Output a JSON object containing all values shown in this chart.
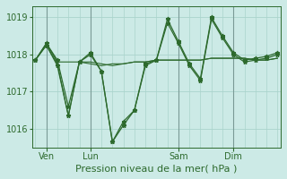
{
  "background_color": "#cceae6",
  "line_color": "#2d6a2d",
  "grid_color": "#aad4cc",
  "vline_color": "#7a9a96",
  "axis_color": "#2d6a2d",
  "ylabel": "Pression niveau de la mer( hPa )",
  "ylim": [
    1015.5,
    1019.3
  ],
  "yticks": [
    1016,
    1017,
    1018,
    1019
  ],
  "series1_x": [
    0,
    1,
    2,
    3,
    4,
    5,
    6,
    7,
    8,
    9,
    10,
    11,
    12,
    13,
    14,
    15,
    16,
    17,
    18,
    19,
    20,
    21,
    22
  ],
  "series1_y": [
    1017.85,
    1018.3,
    1017.8,
    1017.8,
    1017.8,
    1017.75,
    1017.7,
    1017.75,
    1017.75,
    1017.8,
    1017.8,
    1017.85,
    1017.85,
    1017.85,
    1017.85,
    1017.85,
    1017.9,
    1017.9,
    1017.9,
    1017.9,
    1017.85,
    1017.85,
    1017.9
  ],
  "series2_x": [
    0,
    1,
    2,
    3,
    4,
    5,
    6,
    7,
    8,
    9,
    10,
    11,
    12,
    13,
    14,
    15,
    16,
    17,
    18,
    19,
    20,
    21,
    22
  ],
  "series2_y": [
    1017.85,
    1018.25,
    1017.75,
    1016.35,
    1017.8,
    1017.8,
    1017.75,
    1017.7,
    1017.75,
    1017.8,
    1017.8,
    1017.85,
    1017.85,
    1017.85,
    1017.85,
    1017.85,
    1017.9,
    1017.9,
    1017.9,
    1017.9,
    1017.85,
    1017.85,
    1017.9
  ],
  "series3_x": [
    0,
    1,
    2,
    3,
    4,
    5,
    6,
    7,
    8,
    9,
    10,
    11,
    12,
    13,
    14,
    15,
    16,
    17,
    18,
    19,
    20,
    21,
    22
  ],
  "series3_y": [
    1017.85,
    1018.3,
    1017.85,
    1016.6,
    1017.8,
    1018.0,
    1017.55,
    1015.65,
    1016.2,
    1016.5,
    1017.75,
    1017.85,
    1018.95,
    1018.35,
    1017.75,
    1017.35,
    1019.0,
    1018.5,
    1018.05,
    1017.85,
    1017.9,
    1017.95,
    1018.05
  ],
  "series4_x": [
    0,
    1,
    2,
    3,
    4,
    5,
    6,
    7,
    8,
    9,
    10,
    11,
    12,
    13,
    14,
    15,
    16,
    17,
    18,
    19,
    20,
    21,
    22
  ],
  "series4_y": [
    1017.85,
    1018.25,
    1017.7,
    1016.35,
    1017.8,
    1018.05,
    1017.55,
    1015.65,
    1016.1,
    1016.5,
    1017.7,
    1017.85,
    1018.85,
    1018.3,
    1017.7,
    1017.3,
    1018.95,
    1018.45,
    1018.0,
    1017.8,
    1017.85,
    1017.9,
    1018.0
  ],
  "xtick_positions": [
    1,
    5,
    13,
    18
  ],
  "xtick_labels": [
    "Ven",
    "Lun",
    "Sam",
    "Dim"
  ],
  "vline_positions": [
    1,
    5,
    13,
    18
  ],
  "xlabel_fontsize": 8,
  "ytick_fontsize": 7,
  "xtick_fontsize": 7
}
